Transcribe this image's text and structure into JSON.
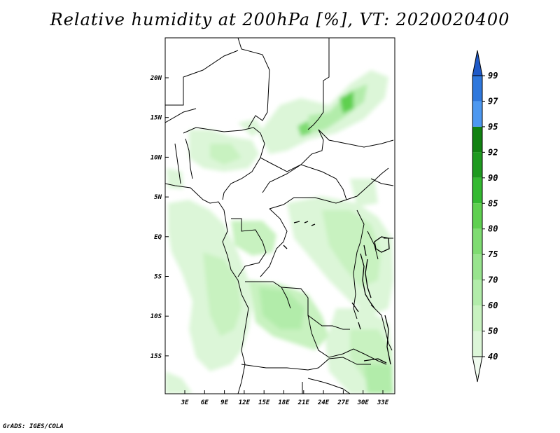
{
  "title": "Relative humidity at 200hPa [%], VT: 2020020400",
  "credit": "GrADS: IGES/COLA",
  "map": {
    "lat_ticks": [
      "20N",
      "15N",
      "10N",
      "5N",
      "EQ",
      "5S",
      "10S",
      "15S"
    ],
    "lon_ticks": [
      "3E",
      "6E",
      "9E",
      "12E",
      "15E",
      "18E",
      "21E",
      "24E",
      "27E",
      "30E",
      "33E"
    ]
  },
  "colorbar": {
    "levels": [
      "40",
      "50",
      "60",
      "70",
      "75",
      "80",
      "85",
      "90",
      "92",
      "95",
      "97",
      "99"
    ],
    "colors": [
      "#f0fbef",
      "#dcf6d8",
      "#c8f2c0",
      "#b2ecaa",
      "#98e48e",
      "#7fdc72",
      "#5fd050",
      "#34b931",
      "#1e9a1f",
      "#118211",
      "#4d98f0",
      "#2f78dd",
      "#1f5ac8"
    ]
  }
}
